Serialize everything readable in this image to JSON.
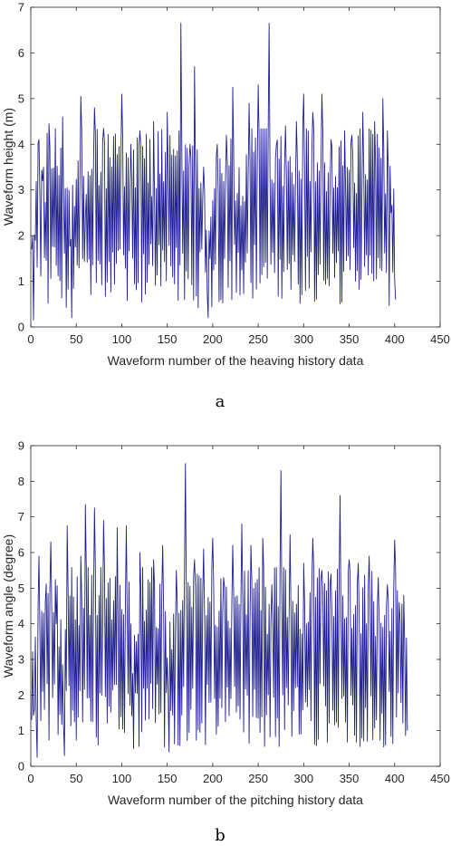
{
  "chart_data": [
    {
      "type": "line",
      "caption": "a",
      "xlabel": "Waveform number of the heaving history data",
      "ylabel": "Waveform height (m)",
      "xlim": [
        0,
        450
      ],
      "ylim": [
        0,
        7
      ],
      "xticks": [
        0,
        50,
        100,
        150,
        200,
        250,
        300,
        350,
        400,
        450
      ],
      "yticks": [
        0,
        1,
        2,
        3,
        4,
        5,
        6,
        7
      ],
      "grid": false,
      "line_color": "#1f1f8f",
      "n_points": 404,
      "peaks": [
        {
          "x": 1,
          "y": 1.7
        },
        {
          "x": 3,
          "y": 0.15
        },
        {
          "x": 5,
          "y": 1.9
        },
        {
          "x": 9,
          "y": 4.1
        },
        {
          "x": 13,
          "y": 3.2
        },
        {
          "x": 20,
          "y": 4.45
        },
        {
          "x": 35,
          "y": 4.6
        },
        {
          "x": 45,
          "y": 0.2
        },
        {
          "x": 55,
          "y": 5.05
        },
        {
          "x": 60,
          "y": 2.4
        },
        {
          "x": 70,
          "y": 4.8
        },
        {
          "x": 80,
          "y": 4.35
        },
        {
          "x": 100,
          "y": 5.1
        },
        {
          "x": 110,
          "y": 4.0
        },
        {
          "x": 120,
          "y": 4.3
        },
        {
          "x": 135,
          "y": 4.5
        },
        {
          "x": 150,
          "y": 4.7
        },
        {
          "x": 165,
          "y": 6.65
        },
        {
          "x": 175,
          "y": 4.0
        },
        {
          "x": 180,
          "y": 5.7
        },
        {
          "x": 190,
          "y": 3.5
        },
        {
          "x": 195,
          "y": 0.2
        },
        {
          "x": 205,
          "y": 4.0
        },
        {
          "x": 215,
          "y": 4.2
        },
        {
          "x": 222,
          "y": 5.25
        },
        {
          "x": 230,
          "y": 0.7
        },
        {
          "x": 240,
          "y": 4.9
        },
        {
          "x": 250,
          "y": 5.3
        },
        {
          "x": 262,
          "y": 6.65
        },
        {
          "x": 270,
          "y": 4.0
        },
        {
          "x": 280,
          "y": 4.4
        },
        {
          "x": 292,
          "y": 4.5
        },
        {
          "x": 300,
          "y": 5.1
        },
        {
          "x": 310,
          "y": 4.7
        },
        {
          "x": 320,
          "y": 5.1
        },
        {
          "x": 330,
          "y": 4.1
        },
        {
          "x": 345,
          "y": 4.3
        },
        {
          "x": 353,
          "y": 4.2
        },
        {
          "x": 365,
          "y": 4.7
        },
        {
          "x": 378,
          "y": 4.5
        },
        {
          "x": 387,
          "y": 5.0
        },
        {
          "x": 392,
          "y": 4.3
        },
        {
          "x": 396,
          "y": 2.5
        },
        {
          "x": 398,
          "y": 1.2
        },
        {
          "x": 401,
          "y": 0.6
        }
      ]
    },
    {
      "type": "line",
      "caption": "b",
      "xlabel": "Waveform number of the pitching history data",
      "ylabel": "Waveform angle (degree)",
      "xlim": [
        0,
        450
      ],
      "ylim": [
        0,
        9
      ],
      "xticks": [
        0,
        50,
        100,
        150,
        200,
        250,
        300,
        350,
        400,
        450
      ],
      "yticks": [
        0,
        1,
        2,
        3,
        4,
        5,
        6,
        7,
        8,
        9
      ],
      "grid": false,
      "line_color": "#1f1f8f",
      "n_points": 415,
      "peaks": [
        {
          "x": 1,
          "y": 1.3
        },
        {
          "x": 4,
          "y": 1.6
        },
        {
          "x": 7,
          "y": 0.25
        },
        {
          "x": 9,
          "y": 5.9
        },
        {
          "x": 16,
          "y": 4.6
        },
        {
          "x": 22,
          "y": 6.3
        },
        {
          "x": 28,
          "y": 4.0
        },
        {
          "x": 37,
          "y": 0.3
        },
        {
          "x": 40,
          "y": 6.75
        },
        {
          "x": 55,
          "y": 5.9
        },
        {
          "x": 60,
          "y": 7.35
        },
        {
          "x": 70,
          "y": 7.25
        },
        {
          "x": 80,
          "y": 6.9
        },
        {
          "x": 95,
          "y": 6.7
        },
        {
          "x": 105,
          "y": 6.75
        },
        {
          "x": 113,
          "y": 0.5
        },
        {
          "x": 120,
          "y": 6.0
        },
        {
          "x": 135,
          "y": 5.8
        },
        {
          "x": 145,
          "y": 6.2
        },
        {
          "x": 152,
          "y": 0.4
        },
        {
          "x": 160,
          "y": 5.5
        },
        {
          "x": 170,
          "y": 8.5
        },
        {
          "x": 180,
          "y": 5.8
        },
        {
          "x": 190,
          "y": 6.1
        },
        {
          "x": 200,
          "y": 6.4
        },
        {
          "x": 212,
          "y": 5.3
        },
        {
          "x": 222,
          "y": 6.2
        },
        {
          "x": 232,
          "y": 6.8
        },
        {
          "x": 242,
          "y": 6.2
        },
        {
          "x": 255,
          "y": 6.4
        },
        {
          "x": 265,
          "y": 5.1
        },
        {
          "x": 275,
          "y": 8.3
        },
        {
          "x": 285,
          "y": 6.5
        },
        {
          "x": 300,
          "y": 5.7
        },
        {
          "x": 310,
          "y": 6.4
        },
        {
          "x": 320,
          "y": 5.5
        },
        {
          "x": 330,
          "y": 5.4
        },
        {
          "x": 340,
          "y": 7.6
        },
        {
          "x": 350,
          "y": 5.8
        },
        {
          "x": 360,
          "y": 5.7
        },
        {
          "x": 372,
          "y": 5.9
        },
        {
          "x": 382,
          "y": 5.3
        },
        {
          "x": 392,
          "y": 5.1
        },
        {
          "x": 400,
          "y": 6.35
        },
        {
          "x": 405,
          "y": 4.6
        },
        {
          "x": 410,
          "y": 4.8
        },
        {
          "x": 414,
          "y": 1.0
        }
      ]
    }
  ]
}
